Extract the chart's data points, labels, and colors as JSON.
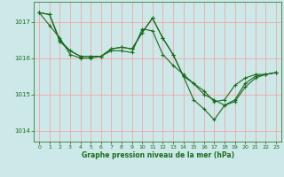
{
  "background_color": "#cce8e8",
  "grid_color": "#ff9999",
  "line_color": "#1a6b1a",
  "marker_color": "#1a6b1a",
  "xlabel": "Graphe pression niveau de la mer (hPa)",
  "xlabel_color": "#1a6b1a",
  "tick_color": "#1a6b1a",
  "ylim": [
    1013.7,
    1017.55
  ],
  "xlim": [
    -0.5,
    23.5
  ],
  "yticks": [
    1014,
    1015,
    1016,
    1017
  ],
  "xticks": [
    0,
    1,
    2,
    3,
    4,
    5,
    6,
    7,
    8,
    9,
    10,
    11,
    12,
    13,
    14,
    15,
    16,
    17,
    18,
    19,
    20,
    21,
    22,
    23
  ],
  "series1": {
    "x": [
      0,
      1,
      2,
      3,
      4,
      5,
      6,
      7,
      8,
      9,
      10,
      11,
      12,
      13,
      14,
      15,
      16,
      17,
      18,
      19,
      20,
      21,
      22,
      23
    ],
    "y": [
      1017.25,
      1016.9,
      1016.55,
      1016.1,
      1016.0,
      1016.0,
      1016.05,
      1016.2,
      1016.2,
      1016.15,
      1016.8,
      1016.75,
      1016.1,
      1015.8,
      1015.55,
      1015.3,
      1015.0,
      1014.85,
      1014.7,
      1014.8,
      1015.2,
      1015.45,
      1015.55,
      1015.6
    ]
  },
  "series2": {
    "x": [
      0,
      1,
      2,
      3,
      4,
      5,
      6,
      7,
      8,
      9,
      10,
      11,
      12,
      13,
      14,
      15,
      16,
      17,
      18,
      19,
      20,
      21,
      22,
      23
    ],
    "y": [
      1017.25,
      1017.2,
      1016.45,
      1016.2,
      1016.05,
      1016.05,
      1016.05,
      1016.25,
      1016.3,
      1016.25,
      1016.7,
      1017.1,
      1016.55,
      1016.1,
      1015.5,
      1014.85,
      1014.6,
      1014.3,
      1014.7,
      1014.85,
      1015.3,
      1015.5,
      1015.55,
      1015.6
    ]
  },
  "series3": {
    "x": [
      0,
      1,
      2,
      3,
      4,
      5,
      6,
      7,
      8,
      9,
      10,
      11,
      12,
      13,
      14,
      15,
      16,
      17,
      18,
      19,
      20,
      21,
      22,
      23
    ],
    "y": [
      1017.25,
      1017.2,
      1016.5,
      1016.2,
      1016.05,
      1016.05,
      1016.05,
      1016.25,
      1016.3,
      1016.25,
      1016.7,
      1017.1,
      1016.55,
      1016.1,
      1015.5,
      1015.3,
      1015.1,
      1014.8,
      1014.85,
      1015.25,
      1015.45,
      1015.55,
      1015.55,
      1015.6
    ]
  }
}
